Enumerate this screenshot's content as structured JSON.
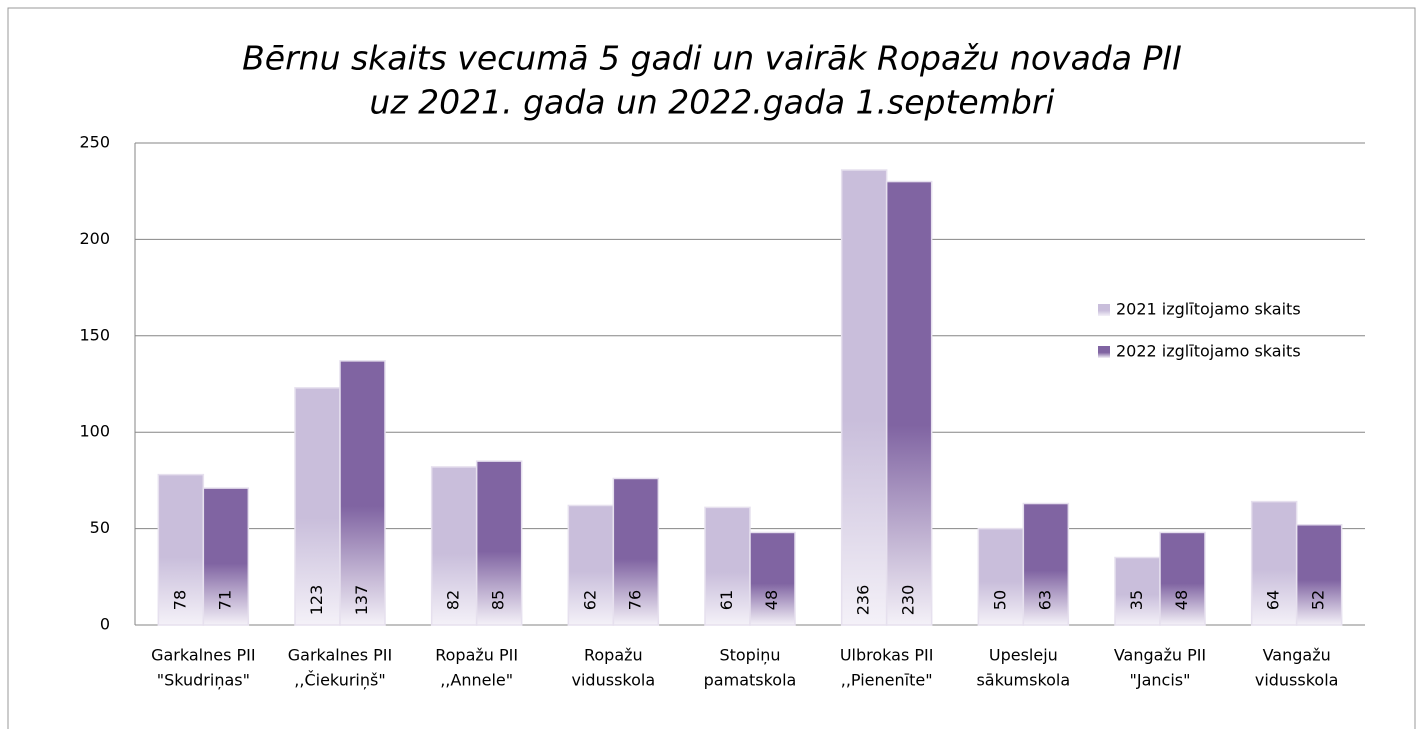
{
  "chart_data": {
    "type": "bar",
    "title": [
      "Bērnu skaits vecumā 5 gadi un vairāk Ropažu novada PII",
      "uz 2021. gada un 2022.gada 1.septembri"
    ],
    "categories": [
      [
        "Garkalnes PII",
        "\"Skudriņas\""
      ],
      [
        "Garkalnes PII",
        ",,Čiekuriņš\""
      ],
      [
        "Ropažu PII",
        ",,Annele\""
      ],
      [
        "Ropažu",
        "vidusskola"
      ],
      [
        "Stopiņu",
        "pamatskola"
      ],
      [
        "Ulbrokas PII",
        ",,Pienenīte\""
      ],
      [
        "Upesleju",
        "sākumskola"
      ],
      [
        "Vangažu PII",
        "\"Jancis\""
      ],
      [
        "Vangažu",
        "vidusskola"
      ]
    ],
    "series": [
      {
        "name": "2021 izglītojamo skaits",
        "color": "#c9bedb",
        "values": [
          78,
          123,
          82,
          62,
          61,
          236,
          50,
          35,
          64
        ]
      },
      {
        "name": "2022 izglītojamo skaits",
        "color": "#8064a2",
        "values": [
          71,
          137,
          85,
          76,
          48,
          230,
          63,
          48,
          52
        ]
      }
    ],
    "ylim": [
      0,
      250
    ],
    "yticks": [
      0,
      50,
      100,
      150,
      200,
      250
    ],
    "grid": true,
    "legend": "right"
  }
}
